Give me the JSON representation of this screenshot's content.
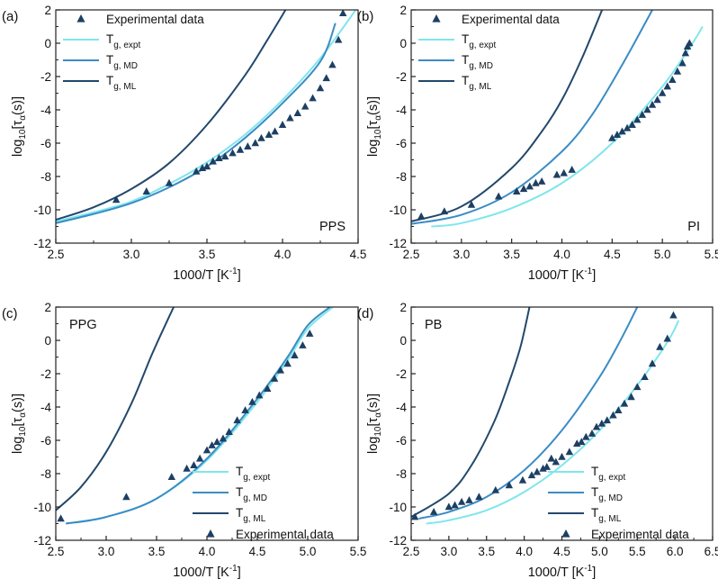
{
  "colors": {
    "expt": "#7fe6ec",
    "md": "#3b8cc4",
    "ml": "#22486b",
    "marker": "#1d3f63"
  },
  "legend_text": {
    "experimental": "Experimental data",
    "expt": {
      "main": "T",
      "sub": "g, expt"
    },
    "md": {
      "main": "T",
      "sub": "g, MD"
    },
    "ml": {
      "main": "T",
      "sub": "g, ML"
    }
  },
  "chart_data": [
    {
      "type": "scatter",
      "panel_label": "(a)",
      "polymer": "PPS",
      "xlabel": "1000/T [K",
      "xlabel_sup": "-1",
      "xlabel_end": "]",
      "ylabel": "log",
      "ylabel_sub": "10",
      "ylabel_rest": "[τ",
      "ylabel_sub2": "α",
      "ylabel_end": "(s)]",
      "xlim": [
        2.5,
        4.5
      ],
      "ylim": [
        -12,
        2
      ],
      "xticks": [
        "2.5",
        "3.0",
        "3.5",
        "4.0",
        "4.5"
      ],
      "yticks": [
        "-12",
        "-10",
        "-8",
        "-6",
        "-4",
        "-2",
        "0",
        "2"
      ],
      "legend_position": "top-left",
      "legend_order": [
        "experimental",
        "expt",
        "md",
        "ml"
      ],
      "series": [
        {
          "key": "expt",
          "name": "Tg, expt",
          "kind": "line",
          "x": [
            2.5,
            2.75,
            3.0,
            3.25,
            3.5,
            3.75,
            4.0,
            4.25,
            4.5
          ],
          "y": [
            -10.7,
            -10.15,
            -9.5,
            -8.45,
            -7.15,
            -5.5,
            -3.4,
            -0.9,
            2.2
          ]
        },
        {
          "key": "md",
          "name": "Tg, MD",
          "kind": "line",
          "x": [
            2.5,
            2.75,
            3.0,
            3.25,
            3.5,
            3.75,
            4.0,
            4.25,
            4.35
          ],
          "y": [
            -10.8,
            -10.25,
            -9.6,
            -8.65,
            -7.4,
            -5.7,
            -3.6,
            -1.1,
            1.2
          ]
        },
        {
          "key": "ml",
          "name": "Tg, ML",
          "kind": "line",
          "x": [
            2.5,
            2.75,
            3.0,
            3.25,
            3.5,
            3.75,
            3.9,
            4.02
          ],
          "y": [
            -10.6,
            -9.85,
            -8.75,
            -7.2,
            -4.9,
            -1.95,
            0.2,
            2.0
          ]
        },
        {
          "key": "experimental",
          "name": "Experimental data",
          "kind": "scatter",
          "x": [
            2.9,
            3.1,
            3.25,
            3.43,
            3.47,
            3.5,
            3.54,
            3.58,
            3.62,
            3.67,
            3.72,
            3.77,
            3.82,
            3.86,
            3.91,
            3.95,
            4.0,
            4.05,
            4.1,
            4.15,
            4.2,
            4.25,
            4.29,
            4.33,
            4.37,
            4.4
          ],
          "y": [
            -9.4,
            -8.9,
            -8.4,
            -7.7,
            -7.5,
            -7.4,
            -7.1,
            -6.9,
            -6.8,
            -6.6,
            -6.4,
            -6.2,
            -6.0,
            -5.7,
            -5.5,
            -5.3,
            -4.9,
            -4.5,
            -4.2,
            -3.8,
            -3.3,
            -2.7,
            -2.1,
            -1.3,
            0.2,
            1.8
          ]
        }
      ]
    },
    {
      "type": "scatter",
      "panel_label": "(b)",
      "polymer": "PI",
      "xlabel": "1000/T [K",
      "xlabel_sup": "-1",
      "xlabel_end": "]",
      "ylabel": "log",
      "ylabel_sub": "10",
      "ylabel_rest": "[τ",
      "ylabel_sub2": "α",
      "ylabel_end": "(s)]",
      "xlim": [
        2.5,
        5.5
      ],
      "ylim": [
        -12,
        2
      ],
      "xticks": [
        "2.5",
        "3.0",
        "3.5",
        "4.0",
        "4.5",
        "5.0",
        "5.5"
      ],
      "yticks": [
        "-12",
        "-10",
        "-8",
        "-6",
        "-4",
        "-2",
        "0",
        "2"
      ],
      "legend_position": "top-left",
      "legend_order": [
        "experimental",
        "expt",
        "md",
        "ml"
      ],
      "series": [
        {
          "key": "expt",
          "name": "Tg, expt",
          "kind": "line",
          "x": [
            2.7,
            3.0,
            3.5,
            4.0,
            4.5,
            5.0,
            5.3,
            5.4
          ],
          "y": [
            -11.0,
            -10.8,
            -9.9,
            -8.4,
            -6.0,
            -2.6,
            0.0,
            1.0
          ]
        },
        {
          "key": "md",
          "name": "Tg, MD",
          "kind": "line",
          "x": [
            2.5,
            3.0,
            3.5,
            4.0,
            4.3,
            4.6,
            4.9
          ],
          "y": [
            -10.85,
            -10.3,
            -8.95,
            -6.5,
            -4.3,
            -1.3,
            2.0
          ]
        },
        {
          "key": "ml",
          "name": "Tg, ML",
          "kind": "line",
          "x": [
            2.5,
            3.0,
            3.5,
            3.8,
            4.0,
            4.2,
            4.4
          ],
          "y": [
            -10.7,
            -9.8,
            -7.5,
            -5.3,
            -3.4,
            -0.9,
            2.0
          ]
        },
        {
          "key": "experimental",
          "name": "Experimental data",
          "kind": "scatter",
          "x": [
            2.6,
            2.83,
            3.1,
            3.37,
            3.55,
            3.62,
            3.68,
            3.74,
            3.8,
            3.95,
            4.02,
            4.1,
            4.5,
            4.55,
            4.6,
            4.65,
            4.7,
            4.75,
            4.8,
            4.85,
            4.9,
            4.95,
            5.0,
            5.05,
            5.1,
            5.15,
            5.2,
            5.23,
            5.25,
            5.27
          ],
          "y": [
            -10.4,
            -10.1,
            -9.7,
            -9.2,
            -8.9,
            -8.75,
            -8.6,
            -8.4,
            -8.3,
            -7.9,
            -7.8,
            -7.6,
            -5.7,
            -5.5,
            -5.3,
            -5.1,
            -4.9,
            -4.6,
            -4.3,
            -4.0,
            -3.7,
            -3.4,
            -3.0,
            -2.6,
            -2.2,
            -1.7,
            -1.2,
            -0.6,
            -0.2,
            0.0
          ]
        }
      ]
    },
    {
      "type": "scatter",
      "panel_label": "(c)",
      "polymer": "PPG",
      "xlabel": "1000/T [K",
      "xlabel_sup": "-1",
      "xlabel_end": "]",
      "ylabel": "log",
      "ylabel_sub": "10",
      "ylabel_rest": "[τ",
      "ylabel_sub2": "α",
      "ylabel_end": "(s)]",
      "xlim": [
        2.5,
        5.5
      ],
      "ylim": [
        -12,
        2
      ],
      "xticks": [
        "2.5",
        "3.0",
        "3.5",
        "4.0",
        "4.5",
        "5.0",
        "5.5"
      ],
      "yticks": [
        "-12",
        "-10",
        "-8",
        "-6",
        "-4",
        "-2",
        "0",
        "2"
      ],
      "legend_position": "bottom-right",
      "legend_order": [
        "expt",
        "md",
        "ml",
        "experimental"
      ],
      "series": [
        {
          "key": "expt",
          "name": "Tg, expt",
          "kind": "line",
          "x": [
            2.6,
            3.0,
            3.5,
            4.0,
            4.5,
            4.8,
            5.0,
            5.25
          ],
          "y": [
            -11.0,
            -10.6,
            -9.5,
            -7.2,
            -3.7,
            -1.2,
            0.7,
            2.0
          ]
        },
        {
          "key": "md",
          "name": "Tg, MD",
          "kind": "line",
          "x": [
            2.6,
            3.0,
            3.5,
            4.0,
            4.5,
            4.8,
            5.0,
            5.22
          ],
          "y": [
            -11.0,
            -10.6,
            -9.5,
            -7.1,
            -3.5,
            -1.0,
            0.9,
            2.0
          ]
        },
        {
          "key": "ml",
          "name": "Tg, ML",
          "kind": "line",
          "x": [
            2.5,
            2.75,
            3.0,
            3.25,
            3.45,
            3.6,
            3.67
          ],
          "y": [
            -10.2,
            -8.8,
            -6.7,
            -3.8,
            -0.9,
            1.1,
            2.0
          ]
        },
        {
          "key": "experimental",
          "name": "Experimental data",
          "kind": "scatter",
          "x": [
            2.55,
            3.2,
            3.65,
            3.8,
            3.87,
            3.93,
            4.0,
            4.05,
            4.1,
            4.16,
            4.22,
            4.3,
            4.38,
            4.45,
            4.52,
            4.6,
            4.67,
            4.73,
            4.8,
            4.87,
            4.95,
            5.02
          ],
          "y": [
            -10.7,
            -9.4,
            -8.2,
            -7.7,
            -7.5,
            -7.1,
            -6.6,
            -6.3,
            -6.1,
            -5.9,
            -5.5,
            -4.8,
            -4.2,
            -3.7,
            -3.3,
            -2.9,
            -2.3,
            -1.8,
            -1.4,
            -0.9,
            -0.3,
            0.4
          ]
        }
      ]
    },
    {
      "type": "scatter",
      "panel_label": "(d)",
      "polymer": "PB",
      "xlabel": "1000/T [K",
      "xlabel_sup": "-1",
      "xlabel_end": "]",
      "ylabel": "log",
      "ylabel_sub": "10",
      "ylabel_rest": "[τ",
      "ylabel_sub2": "α",
      "ylabel_end": "(s)]",
      "xlim": [
        2.5,
        6.5
      ],
      "ylim": [
        -12,
        2
      ],
      "xticks": [
        "2.5",
        "3.0",
        "3.5",
        "4.0",
        "4.5",
        "5.0",
        "5.5",
        "6.0",
        "6.5"
      ],
      "yticks": [
        "-12",
        "-10",
        "-8",
        "-6",
        "-4",
        "-2",
        "0",
        "2"
      ],
      "legend_position": "bottom-right",
      "legend_order": [
        "expt",
        "md",
        "ml",
        "experimental"
      ],
      "series": [
        {
          "key": "expt",
          "name": "Tg, expt",
          "kind": "line",
          "x": [
            2.7,
            3.0,
            3.5,
            4.0,
            4.5,
            5.0,
            5.5,
            5.9,
            6.05
          ],
          "y": [
            -11.0,
            -10.8,
            -10.2,
            -9.1,
            -7.5,
            -5.4,
            -2.7,
            -0.1,
            1.2
          ]
        },
        {
          "key": "md",
          "name": "Tg, MD",
          "kind": "line",
          "x": [
            2.6,
            3.0,
            3.5,
            4.0,
            4.5,
            5.0,
            5.3,
            5.5
          ],
          "y": [
            -10.7,
            -10.3,
            -9.4,
            -7.8,
            -5.4,
            -2.2,
            0.2,
            2.0
          ]
        },
        {
          "key": "ml",
          "name": "Tg, ML",
          "kind": "line",
          "x": [
            2.5,
            3.0,
            3.3,
            3.6,
            3.8,
            3.95,
            4.07
          ],
          "y": [
            -10.6,
            -9.2,
            -7.5,
            -4.9,
            -2.5,
            -0.4,
            2.0
          ]
        },
        {
          "key": "experimental",
          "name": "Experimental data",
          "kind": "scatter",
          "x": [
            2.55,
            2.8,
            3.0,
            3.08,
            3.17,
            3.27,
            3.4,
            3.62,
            3.8,
            3.98,
            4.1,
            4.17,
            4.25,
            4.3,
            4.36,
            4.42,
            4.5,
            4.6,
            4.7,
            4.76,
            4.82,
            4.9,
            4.96,
            5.03,
            5.1,
            5.18,
            5.25,
            5.33,
            5.42,
            5.5,
            5.6,
            5.7,
            5.8,
            5.9,
            5.98
          ],
          "y": [
            -10.6,
            -10.3,
            -10.0,
            -9.9,
            -9.7,
            -9.6,
            -9.4,
            -9.0,
            -8.7,
            -8.4,
            -8.1,
            -7.9,
            -7.7,
            -7.6,
            -7.1,
            -7.3,
            -7.0,
            -6.7,
            -6.2,
            -6.1,
            -5.8,
            -5.6,
            -5.2,
            -5.0,
            -4.8,
            -4.5,
            -4.2,
            -3.8,
            -3.4,
            -2.8,
            -2.2,
            -1.4,
            -0.4,
            0.1,
            1.5
          ]
        }
      ]
    }
  ]
}
